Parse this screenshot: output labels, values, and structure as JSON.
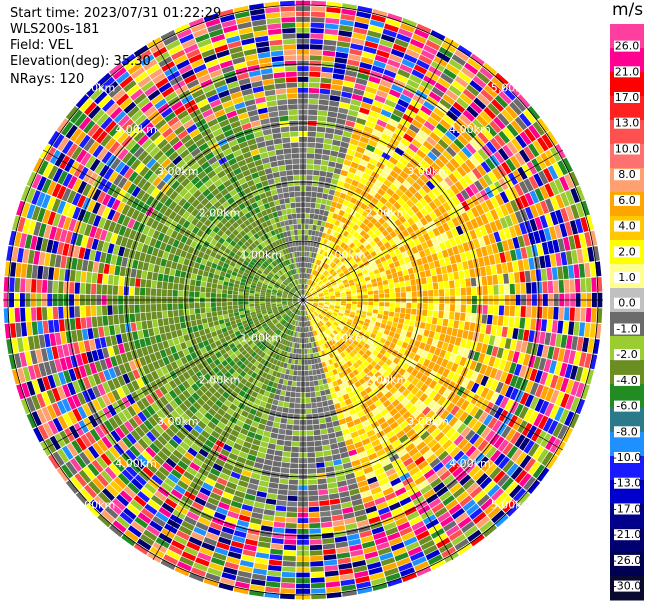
{
  "header": {
    "start_time": "Start time: 2023/07/31 01:22:29",
    "instrument": "WLS200s-181",
    "field": "Field: VEL",
    "elevation": "Elevation(deg): 35.30",
    "nrays": "NRays: 120"
  },
  "chart_data": {
    "type": "heatmap",
    "projection": "polar-ppi",
    "field": "VEL",
    "units": "m/s",
    "n_rays": 120,
    "range_rings_km": [
      1,
      2,
      3,
      4,
      5
    ],
    "range_labels": [
      "1.00km",
      "2.00km",
      "3.00km",
      "4.00km",
      "5.00km"
    ],
    "colorbar": {
      "title": "m/s",
      "ticks": [
        "26.0",
        "21.0",
        "17.0",
        "13.0",
        "10.0",
        "8.0",
        "6.0",
        "4.0",
        "2.0",
        "1.0",
        "0.0",
        "-1.0",
        "-2.0",
        "-4.0",
        "-6.0",
        "-8.0",
        "-10.0",
        "-13.0",
        "-17.0",
        "-21.0",
        "-26.0",
        "-30.0"
      ],
      "colors": [
        "#ff3fa0",
        "#ff0090",
        "#ff0000",
        "#ff2020",
        "#ff5050",
        "#ff7070",
        "#ffa070",
        "#ffa500",
        "#ffc800",
        "#ffff00",
        "#ffff90",
        "#c0c0c0",
        "#6b6b6b",
        "#9acd32",
        "#6b8e23",
        "#228b22",
        "#2a7a8a",
        "#1e90ff",
        "#1a1aff",
        "#0000cc",
        "#00008b",
        "#000070",
        "#000050",
        "#0a0a30"
      ]
    },
    "summary": {
      "near_range_east": "positive (yellow/orange, 1 to 6 m/s)",
      "near_range_west": "negative (green, -2 to -6 m/s)",
      "near_range_north_south": "near zero (gray)",
      "far_range": "noisy multicolor beyond ~4 km"
    }
  }
}
